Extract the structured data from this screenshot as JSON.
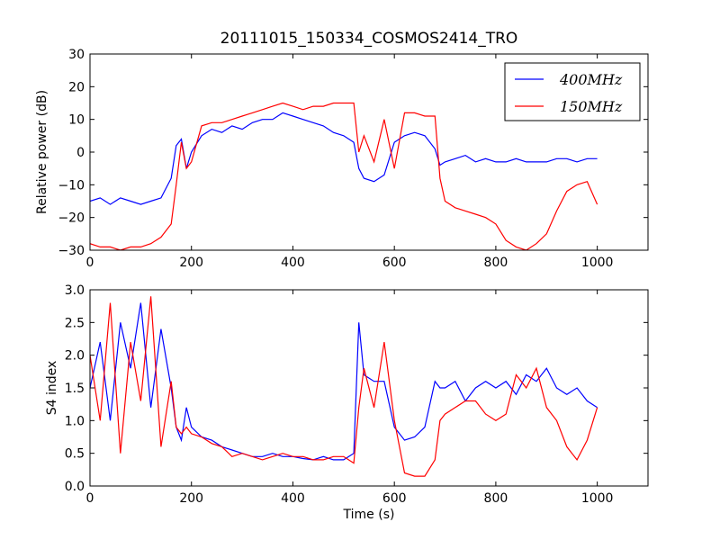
{
  "chart_data": [
    {
      "type": "line",
      "title": "20111015_150334_COSMOS2414_TRO",
      "xlabel": "",
      "ylabel": "Relative power (dB)",
      "xlim": [
        0,
        1100
      ],
      "ylim": [
        -30,
        30
      ],
      "xticks": [
        0,
        200,
        400,
        600,
        800,
        1000
      ],
      "yticks": [
        -30,
        -20,
        -10,
        0,
        10,
        20,
        30
      ],
      "ytick_labels": [
        "−30",
        "−20",
        "−10",
        "0",
        "10",
        "20",
        "30"
      ],
      "legend": {
        "placement": "top-right",
        "entries": [
          "400MHz",
          "150MHz"
        ]
      },
      "series": [
        {
          "name": "400MHz",
          "color": "#0000ff",
          "x": [
            0,
            20,
            40,
            60,
            80,
            100,
            120,
            140,
            160,
            170,
            180,
            190,
            200,
            220,
            240,
            260,
            280,
            300,
            320,
            340,
            360,
            380,
            400,
            420,
            440,
            460,
            480,
            500,
            520,
            530,
            540,
            560,
            580,
            600,
            620,
            640,
            660,
            680,
            690,
            700,
            720,
            740,
            760,
            780,
            800,
            820,
            840,
            860,
            880,
            900,
            920,
            940,
            960,
            980,
            1000
          ],
          "values": [
            -15,
            -14,
            -16,
            -14,
            -15,
            -16,
            -15,
            -14,
            -8,
            2,
            4,
            -5,
            0,
            5,
            7,
            6,
            8,
            7,
            9,
            10,
            10,
            12,
            11,
            10,
            9,
            8,
            6,
            5,
            3,
            -5,
            -8,
            -9,
            -7,
            3,
            5,
            6,
            5,
            1,
            -4,
            -3,
            -2,
            -1,
            -3,
            -2,
            -3,
            -3,
            -2,
            -3,
            -3,
            -3,
            -2,
            -2,
            -3,
            -2,
            -2
          ]
        },
        {
          "name": "150MHz",
          "color": "#ff0000",
          "x": [
            0,
            20,
            40,
            60,
            80,
            100,
            120,
            140,
            160,
            170,
            180,
            190,
            200,
            220,
            240,
            260,
            280,
            300,
            320,
            340,
            360,
            380,
            400,
            420,
            440,
            460,
            480,
            500,
            520,
            530,
            540,
            560,
            580,
            600,
            620,
            640,
            660,
            680,
            690,
            700,
            720,
            740,
            760,
            780,
            800,
            820,
            840,
            860,
            880,
            900,
            920,
            940,
            960,
            980,
            1000
          ],
          "values": [
            -28,
            -29,
            -29,
            -30,
            -29,
            -29,
            -28,
            -26,
            -22,
            -10,
            3,
            -5,
            -3,
            8,
            9,
            9,
            10,
            11,
            12,
            13,
            14,
            15,
            14,
            13,
            14,
            14,
            15,
            15,
            15,
            0,
            5,
            -3,
            10,
            -5,
            12,
            12,
            11,
            11,
            -8,
            -15,
            -17,
            -18,
            -19,
            -20,
            -22,
            -27,
            -29,
            -30,
            -28,
            -25,
            -18,
            -12,
            -10,
            -9,
            -16
          ]
        }
      ]
    },
    {
      "type": "line",
      "title": "",
      "xlabel": "Time (s)",
      "ylabel": "S4 index",
      "xlim": [
        0,
        1100
      ],
      "ylim": [
        0,
        3
      ],
      "xticks": [
        0,
        200,
        400,
        600,
        800,
        1000
      ],
      "yticks": [
        0,
        0.5,
        1,
        1.5,
        2,
        2.5,
        3
      ],
      "ytick_labels": [
        "0.0",
        "0.5",
        "1.0",
        "1.5",
        "2.0",
        "2.5",
        "3.0"
      ],
      "series": [
        {
          "name": "400MHz",
          "color": "#0000ff",
          "x": [
            0,
            20,
            40,
            60,
            80,
            100,
            120,
            140,
            160,
            170,
            180,
            190,
            200,
            220,
            240,
            260,
            280,
            300,
            320,
            340,
            360,
            380,
            400,
            420,
            440,
            460,
            480,
            500,
            520,
            530,
            540,
            560,
            580,
            600,
            620,
            640,
            660,
            680,
            690,
            700,
            720,
            740,
            760,
            780,
            800,
            820,
            840,
            860,
            880,
            900,
            920,
            940,
            960,
            980,
            1000
          ],
          "values": [
            1.5,
            2.2,
            1.0,
            2.5,
            1.8,
            2.8,
            1.2,
            2.4,
            1.5,
            0.9,
            0.7,
            1.2,
            0.9,
            0.75,
            0.7,
            0.6,
            0.55,
            0.5,
            0.45,
            0.45,
            0.5,
            0.45,
            0.45,
            0.42,
            0.4,
            0.45,
            0.4,
            0.4,
            0.5,
            2.5,
            1.7,
            1.6,
            1.6,
            0.9,
            0.7,
            0.75,
            0.9,
            1.6,
            1.5,
            1.5,
            1.6,
            1.3,
            1.5,
            1.6,
            1.5,
            1.6,
            1.4,
            1.7,
            1.6,
            1.8,
            1.5,
            1.4,
            1.5,
            1.3,
            1.2
          ]
        },
        {
          "name": "150MHz",
          "color": "#ff0000",
          "x": [
            0,
            20,
            40,
            60,
            80,
            100,
            120,
            140,
            160,
            170,
            180,
            190,
            200,
            220,
            240,
            260,
            280,
            300,
            320,
            340,
            360,
            380,
            400,
            420,
            440,
            460,
            480,
            500,
            520,
            530,
            540,
            560,
            580,
            600,
            620,
            640,
            660,
            680,
            690,
            700,
            720,
            740,
            760,
            780,
            800,
            820,
            840,
            860,
            880,
            900,
            920,
            940,
            960,
            980,
            1000
          ],
          "values": [
            2.0,
            1.0,
            2.8,
            0.5,
            2.2,
            1.3,
            2.9,
            0.6,
            1.6,
            0.9,
            0.8,
            0.9,
            0.8,
            0.75,
            0.65,
            0.6,
            0.45,
            0.5,
            0.45,
            0.4,
            0.45,
            0.5,
            0.45,
            0.45,
            0.4,
            0.4,
            0.45,
            0.45,
            0.35,
            1.2,
            1.8,
            1.2,
            2.2,
            1.0,
            0.2,
            0.15,
            0.15,
            0.4,
            1.0,
            1.1,
            1.2,
            1.3,
            1.3,
            1.1,
            1.0,
            1.1,
            1.7,
            1.5,
            1.8,
            1.2,
            1.0,
            0.6,
            0.4,
            0.7,
            1.2
          ]
        }
      ]
    }
  ]
}
